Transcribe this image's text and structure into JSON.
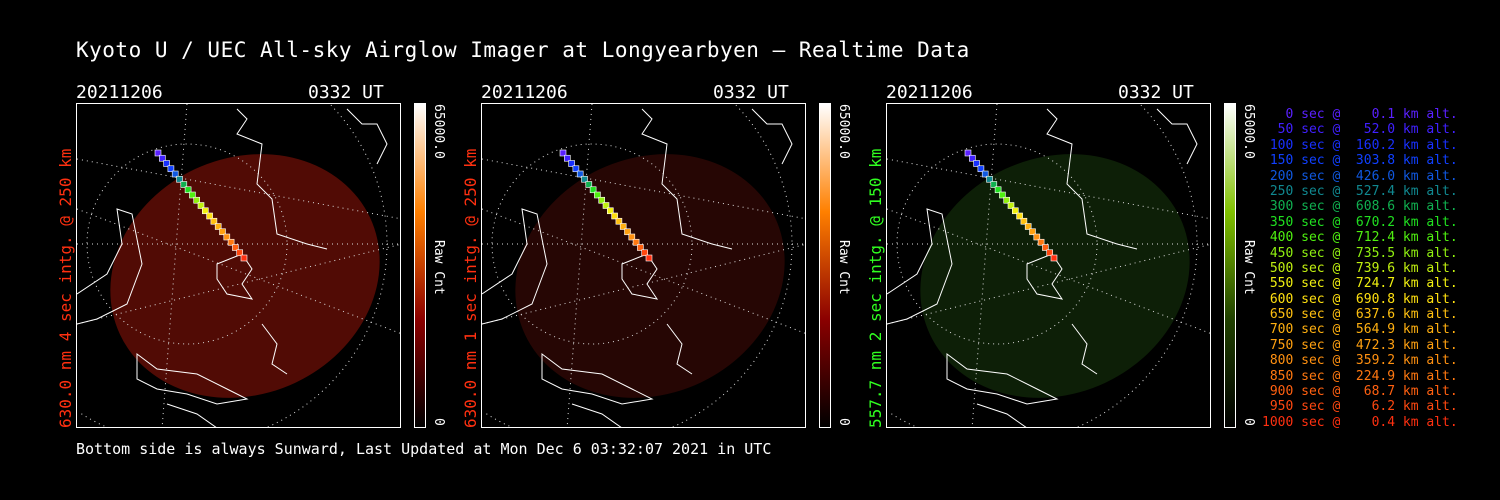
{
  "title": "Kyoto U / UEC All-sky Airglow Imager at Longyearbyen — Realtime Data",
  "panels": [
    {
      "date": "20211206",
      "time": "0332 UT",
      "side_label": "630.0 nm 4 sec intg. @ 250 km",
      "side_color": "#ff3010",
      "cbar_max": "65000.0",
      "cbar_min": "0",
      "cbar_unit": "Raw Cnt",
      "cbar_colors": [
        "#ffffff",
        "#ff8000",
        "#8b0000",
        "#000000"
      ],
      "fill": "#5a0c06",
      "fill_opacity": 0.9
    },
    {
      "date": "20211206",
      "time": "0332 UT",
      "side_label": "630.0 nm 1 sec intg. @ 250 km",
      "side_color": "#ff3010",
      "cbar_max": "65000.0",
      "cbar_min": "0",
      "cbar_unit": "Raw Cnt",
      "cbar_colors": [
        "#ffffff",
        "#ff8000",
        "#8b0000",
        "#000000"
      ],
      "fill": "#2a0704",
      "fill_opacity": 0.9
    },
    {
      "date": "20211206",
      "time": "0332 UT",
      "side_label": "557.7 nm 2 sec intg. @ 150 km",
      "side_color": "#30ff20",
      "cbar_max": "65000.0",
      "cbar_min": "0",
      "cbar_unit": "Raw Cnt",
      "cbar_colors": [
        "#ffffff",
        "#80c000",
        "#204000",
        "#000000"
      ],
      "fill": "#0e2208",
      "fill_opacity": 0.9
    }
  ],
  "legend": [
    {
      "text": "   0 sec @    0.1 km alt.",
      "color": "#5a20ff"
    },
    {
      "text": "  50 sec @   52.0 km alt.",
      "color": "#4020ff"
    },
    {
      "text": " 100 sec @  160.2 km alt.",
      "color": "#1830ff"
    },
    {
      "text": " 150 sec @  303.8 km alt.",
      "color": "#1040ff"
    },
    {
      "text": " 200 sec @  426.0 km alt.",
      "color": "#1058e0"
    },
    {
      "text": " 250 sec @  527.4 km alt.",
      "color": "#108890"
    },
    {
      "text": " 300 sec @  608.6 km alt.",
      "color": "#10b050"
    },
    {
      "text": " 350 sec @  670.2 km alt.",
      "color": "#20e020"
    },
    {
      "text": " 400 sec @  712.4 km alt.",
      "color": "#50f010"
    },
    {
      "text": " 450 sec @  735.5 km alt.",
      "color": "#90f010"
    },
    {
      "text": " 500 sec @  739.6 km alt.",
      "color": "#c0f010"
    },
    {
      "text": " 550 sec @  724.7 km alt.",
      "color": "#f0f010"
    },
    {
      "text": " 600 sec @  690.8 km alt.",
      "color": "#ffe010"
    },
    {
      "text": " 650 sec @  637.6 km alt.",
      "color": "#ffc010"
    },
    {
      "text": " 700 sec @  564.9 km alt.",
      "color": "#ffb010"
    },
    {
      "text": " 750 sec @  472.3 km alt.",
      "color": "#ffa010"
    },
    {
      "text": " 800 sec @  359.2 km alt.",
      "color": "#ff9010"
    },
    {
      "text": " 850 sec @  224.9 km alt.",
      "color": "#ff7810"
    },
    {
      "text": " 900 sec @   68.7 km alt.",
      "color": "#ff6010"
    },
    {
      "text": " 950 sec @    6.2 km alt.",
      "color": "#ff4810"
    },
    {
      "text": "1000 sec @    0.4 km alt.",
      "color": "#ff3010"
    }
  ],
  "footer": "Bottom side is always Sunward, Last Updated at Mon Dec  6 03:32:07 2021 in UTC"
}
